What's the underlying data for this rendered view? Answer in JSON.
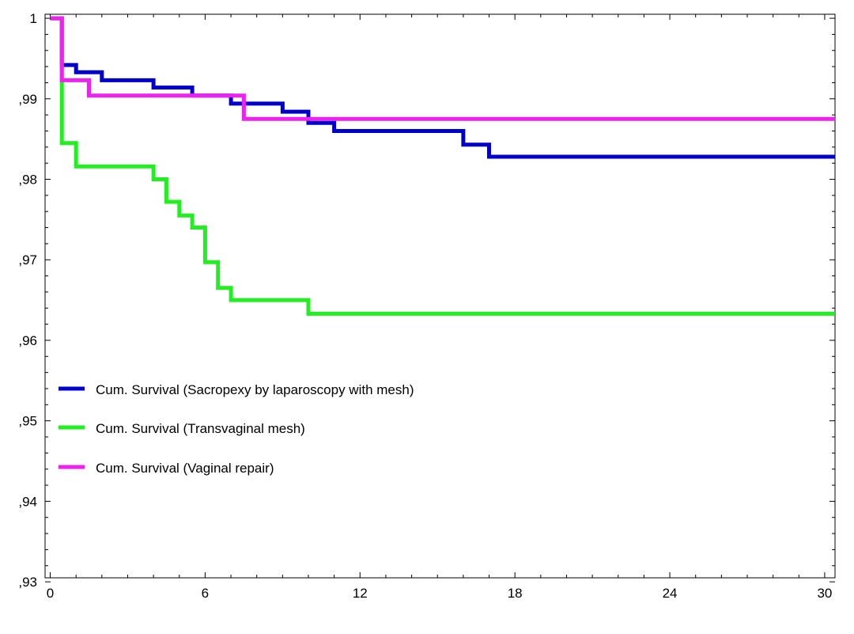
{
  "chart_data": {
    "type": "line",
    "step": true,
    "title": "",
    "xlabel": "",
    "ylabel": "",
    "xlim": [
      -0.2,
      30.4
    ],
    "ylim": [
      0.9305,
      1.0005
    ],
    "x_ticks": [
      0,
      6,
      12,
      18,
      24,
      30
    ],
    "x_tick_labels": [
      "0",
      "6",
      "12",
      "18",
      "24",
      "30"
    ],
    "y_ticks": [
      0.93,
      0.94,
      0.95,
      0.96,
      0.97,
      0.98,
      0.99,
      1.0
    ],
    "y_tick_labels": [
      ",93",
      ",94",
      ",95",
      ",96",
      ",97",
      ",98",
      ",99",
      "1"
    ],
    "grid": false,
    "legend_position": "center-left",
    "series": [
      {
        "name": "Cum. Survival (Sacropexy by laparoscopy with mesh)",
        "color": "#0000cc",
        "points": [
          [
            0,
            1.0
          ],
          [
            0.45,
            1.0
          ],
          [
            0.45,
            0.9942
          ],
          [
            1.0,
            0.9942
          ],
          [
            1.0,
            0.9933
          ],
          [
            2.0,
            0.9933
          ],
          [
            2.0,
            0.9923
          ],
          [
            4.0,
            0.9923
          ],
          [
            4.0,
            0.9914
          ],
          [
            5.5,
            0.9914
          ],
          [
            5.5,
            0.9904
          ],
          [
            7.0,
            0.9904
          ],
          [
            7.0,
            0.9894
          ],
          [
            9.0,
            0.9894
          ],
          [
            9.0,
            0.9884
          ],
          [
            10.0,
            0.9884
          ],
          [
            10.0,
            0.987
          ],
          [
            11.0,
            0.987
          ],
          [
            11.0,
            0.986
          ],
          [
            16.0,
            0.986
          ],
          [
            16.0,
            0.9843
          ],
          [
            17.0,
            0.9843
          ],
          [
            17.0,
            0.9828
          ],
          [
            30.4,
            0.9828
          ]
        ]
      },
      {
        "name": "Cum. Survival (Transvaginal mesh)",
        "color": "#22ee22",
        "points": [
          [
            0,
            1.0
          ],
          [
            0.45,
            1.0
          ],
          [
            0.45,
            0.9919
          ],
          [
            0.45,
            0.9845
          ],
          [
            1.0,
            0.9845
          ],
          [
            1.0,
            0.9816
          ],
          [
            4.0,
            0.9816
          ],
          [
            4.0,
            0.98
          ],
          [
            4.5,
            0.98
          ],
          [
            4.5,
            0.9772
          ],
          [
            5.0,
            0.9772
          ],
          [
            5.0,
            0.9755
          ],
          [
            5.5,
            0.9755
          ],
          [
            5.5,
            0.974
          ],
          [
            6.0,
            0.974
          ],
          [
            6.0,
            0.9697
          ],
          [
            6.5,
            0.9697
          ],
          [
            6.5,
            0.9665
          ],
          [
            7.0,
            0.9665
          ],
          [
            7.0,
            0.965
          ],
          [
            10.0,
            0.965
          ],
          [
            10.0,
            0.9633
          ],
          [
            30.4,
            0.9633
          ]
        ]
      },
      {
        "name": "Cum. Survival (Vaginal repair)",
        "color": "#ee22ee",
        "points": [
          [
            0,
            1.0
          ],
          [
            0.45,
            1.0
          ],
          [
            0.45,
            0.9923
          ],
          [
            1.5,
            0.9923
          ],
          [
            1.5,
            0.9904
          ],
          [
            7.5,
            0.9904
          ],
          [
            7.5,
            0.9875
          ],
          [
            30.4,
            0.9875
          ]
        ]
      }
    ]
  }
}
